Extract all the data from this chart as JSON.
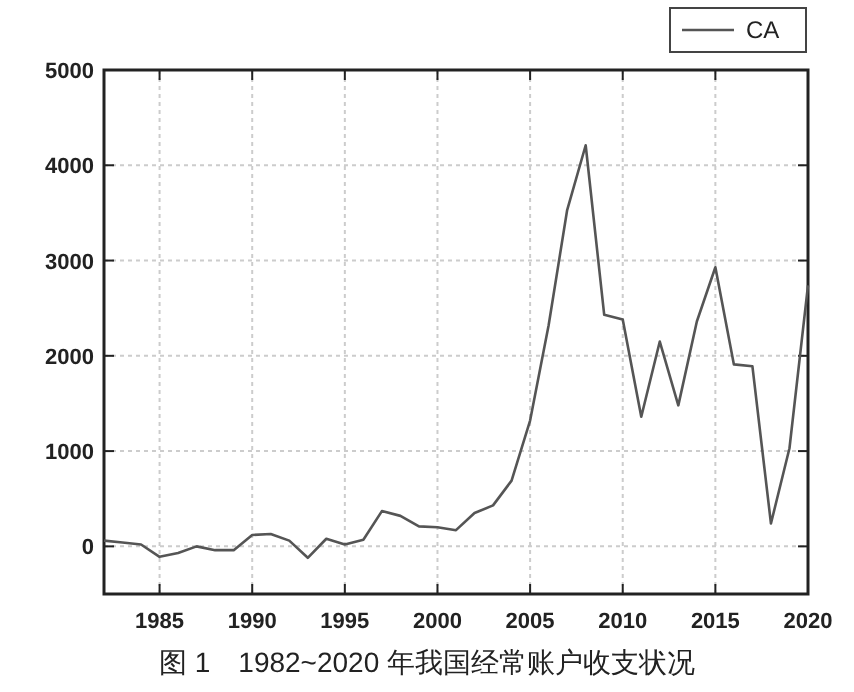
{
  "chart_data": {
    "type": "line",
    "title": "图 1　1982~2020 年我国经常账户收支状况",
    "x": [
      1982,
      1983,
      1984,
      1985,
      1986,
      1987,
      1988,
      1989,
      1990,
      1991,
      1992,
      1993,
      1994,
      1995,
      1996,
      1997,
      1998,
      1999,
      2000,
      2001,
      2002,
      2003,
      2004,
      2005,
      2006,
      2007,
      2008,
      2009,
      2010,
      2011,
      2012,
      2013,
      2014,
      2015,
      2016,
      2017,
      2018,
      2019,
      2020
    ],
    "series": [
      {
        "name": "CA",
        "color": "#555555",
        "values": [
          60,
          40,
          20,
          -110,
          -70,
          0,
          -40,
          -40,
          120,
          130,
          60,
          -120,
          80,
          20,
          70,
          370,
          320,
          210,
          200,
          170,
          350,
          430,
          690,
          1320,
          2320,
          3530,
          4210,
          2430,
          2380,
          1360,
          2150,
          1480,
          2360,
          2930,
          1910,
          1890,
          240,
          1030,
          2740
        ]
      }
    ],
    "xlim": [
      1982,
      2020
    ],
    "xticks": [
      1985,
      1990,
      1995,
      2000,
      2005,
      2010,
      2015,
      2020
    ],
    "ylim": [
      -500,
      5000
    ],
    "yticks": [
      0,
      1000,
      2000,
      3000,
      4000,
      5000
    ],
    "grid": true,
    "legend": "top right",
    "line_style": "solid"
  }
}
